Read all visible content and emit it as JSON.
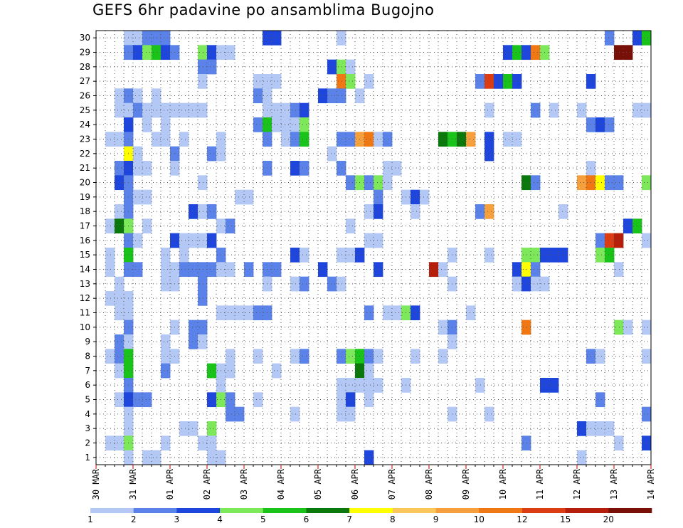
{
  "chart_data": {
    "type": "heatmap",
    "title": "GEFS 6hr padavine po ansamblima Bugojno",
    "xlabel": "",
    "ylabel": "",
    "y_ticks": [
      "1",
      "2",
      "3",
      "4",
      "5",
      "6",
      "7",
      "8",
      "9",
      "10",
      "11",
      "12",
      "13",
      "14",
      "15",
      "16",
      "17",
      "18",
      "19",
      "20",
      "21",
      "22",
      "23",
      "24",
      "25",
      "26",
      "27",
      "28",
      "29",
      "30"
    ],
    "x_ticks": [
      "30 MAR",
      "31 MAR",
      "01 APR",
      "02 APR",
      "03 APR",
      "04 APR",
      "05 APR",
      "06 APR",
      "07 APR",
      "08 APR",
      "09 APR",
      "10 APR",
      "11 APR",
      "12 APR",
      "13 APR",
      "14 APR"
    ],
    "time_steps_per_day": 4,
    "time_steps": 60,
    "members": 30,
    "grid": true,
    "legend_position": "bottom",
    "colorbar": {
      "labels": [
        "1",
        "2",
        "3",
        "4",
        "5",
        "6",
        "7",
        "8",
        "9",
        "10",
        "12",
        "15",
        "20"
      ],
      "colors": [
        "#b4c8f5",
        "#5a82e8",
        "#1e46dc",
        "#7de85a",
        "#19c319",
        "#0a780a",
        "#ffff00",
        "#fac85a",
        "#f5a03c",
        "#f07814",
        "#dc3c14",
        "#b41e0a",
        "#781008"
      ]
    },
    "cells": [
      [
        30,
        3,
        1
      ],
      [
        30,
        4,
        1
      ],
      [
        30,
        5,
        2
      ],
      [
        30,
        6,
        2
      ],
      [
        30,
        7,
        2
      ],
      [
        30,
        18,
        3
      ],
      [
        30,
        19,
        3
      ],
      [
        30,
        26,
        1
      ],
      [
        30,
        55,
        2
      ],
      [
        30,
        58,
        3
      ],
      [
        30,
        59,
        5
      ],
      [
        29,
        3,
        2
      ],
      [
        29,
        4,
        3
      ],
      [
        29,
        5,
        4
      ],
      [
        29,
        6,
        5
      ],
      [
        29,
        7,
        3
      ],
      [
        29,
        8,
        2
      ],
      [
        29,
        11,
        4
      ],
      [
        29,
        12,
        3
      ],
      [
        29,
        13,
        1
      ],
      [
        29,
        14,
        1
      ],
      [
        29,
        44,
        3
      ],
      [
        29,
        45,
        5
      ],
      [
        29,
        46,
        3
      ],
      [
        29,
        47,
        10
      ],
      [
        29,
        48,
        4
      ],
      [
        29,
        56,
        13
      ],
      [
        29,
        57,
        13
      ],
      [
        28,
        11,
        2
      ],
      [
        28,
        12,
        2
      ],
      [
        28,
        25,
        3
      ],
      [
        28,
        26,
        4
      ],
      [
        28,
        27,
        1
      ],
      [
        27,
        11,
        1
      ],
      [
        27,
        17,
        1
      ],
      [
        27,
        18,
        1
      ],
      [
        27,
        19,
        1
      ],
      [
        27,
        26,
        10
      ],
      [
        27,
        27,
        4
      ],
      [
        27,
        29,
        1
      ],
      [
        27,
        41,
        2
      ],
      [
        27,
        42,
        11
      ],
      [
        27,
        43,
        3
      ],
      [
        27,
        44,
        5
      ],
      [
        27,
        45,
        3
      ],
      [
        27,
        53,
        3
      ],
      [
        26,
        2,
        1
      ],
      [
        26,
        3,
        2
      ],
      [
        26,
        4,
        1
      ],
      [
        26,
        6,
        1
      ],
      [
        26,
        17,
        2
      ],
      [
        26,
        18,
        1
      ],
      [
        26,
        24,
        3
      ],
      [
        26,
        25,
        2
      ],
      [
        26,
        26,
        2
      ],
      [
        26,
        28,
        1
      ],
      [
        25,
        2,
        1
      ],
      [
        25,
        3,
        1
      ],
      [
        25,
        4,
        2
      ],
      [
        25,
        5,
        1
      ],
      [
        25,
        6,
        1
      ],
      [
        25,
        7,
        1
      ],
      [
        25,
        8,
        1
      ],
      [
        25,
        9,
        1
      ],
      [
        25,
        10,
        1
      ],
      [
        25,
        11,
        1
      ],
      [
        25,
        18,
        1
      ],
      [
        25,
        19,
        1
      ],
      [
        25,
        20,
        1
      ],
      [
        25,
        21,
        2
      ],
      [
        25,
        22,
        3
      ],
      [
        25,
        42,
        1
      ],
      [
        25,
        47,
        2
      ],
      [
        25,
        49,
        1
      ],
      [
        25,
        52,
        1
      ],
      [
        25,
        58,
        1
      ],
      [
        25,
        59,
        1
      ],
      [
        24,
        3,
        3
      ],
      [
        24,
        5,
        1
      ],
      [
        24,
        7,
        1
      ],
      [
        24,
        17,
        2
      ],
      [
        24,
        18,
        5
      ],
      [
        24,
        19,
        1
      ],
      [
        24,
        20,
        1
      ],
      [
        24,
        21,
        1
      ],
      [
        24,
        22,
        4
      ],
      [
        24,
        53,
        2
      ],
      [
        24,
        54,
        3
      ],
      [
        24,
        55,
        2
      ],
      [
        23,
        1,
        1
      ],
      [
        23,
        2,
        1
      ],
      [
        23,
        3,
        2
      ],
      [
        23,
        6,
        1
      ],
      [
        23,
        7,
        1
      ],
      [
        23,
        9,
        1
      ],
      [
        23,
        13,
        1
      ],
      [
        23,
        18,
        2
      ],
      [
        23,
        20,
        1
      ],
      [
        23,
        21,
        2
      ],
      [
        23,
        22,
        5
      ],
      [
        23,
        26,
        2
      ],
      [
        23,
        27,
        2
      ],
      [
        23,
        28,
        9
      ],
      [
        23,
        29,
        10
      ],
      [
        23,
        30,
        1
      ],
      [
        23,
        31,
        2
      ],
      [
        23,
        37,
        6
      ],
      [
        23,
        38,
        5
      ],
      [
        23,
        39,
        6
      ],
      [
        23,
        40,
        9
      ],
      [
        23,
        42,
        3
      ],
      [
        23,
        44,
        1
      ],
      [
        23,
        45,
        1
      ],
      [
        22,
        3,
        7
      ],
      [
        22,
        4,
        1
      ],
      [
        22,
        8,
        2
      ],
      [
        22,
        12,
        2
      ],
      [
        22,
        13,
        1
      ],
      [
        22,
        25,
        1
      ],
      [
        22,
        42,
        3
      ],
      [
        21,
        2,
        2
      ],
      [
        21,
        3,
        3
      ],
      [
        21,
        4,
        1
      ],
      [
        21,
        5,
        1
      ],
      [
        21,
        8,
        1
      ],
      [
        21,
        18,
        2
      ],
      [
        21,
        21,
        3
      ],
      [
        21,
        22,
        2
      ],
      [
        21,
        26,
        2
      ],
      [
        21,
        31,
        1
      ],
      [
        21,
        32,
        1
      ],
      [
        21,
        53,
        1
      ],
      [
        20,
        2,
        3
      ],
      [
        20,
        3,
        2
      ],
      [
        20,
        11,
        1
      ],
      [
        20,
        27,
        2
      ],
      [
        20,
        28,
        4
      ],
      [
        20,
        29,
        2
      ],
      [
        20,
        30,
        4
      ],
      [
        20,
        31,
        1
      ],
      [
        20,
        46,
        6
      ],
      [
        20,
        47,
        2
      ],
      [
        20,
        52,
        9
      ],
      [
        20,
        53,
        10
      ],
      [
        20,
        54,
        7
      ],
      [
        20,
        55,
        2
      ],
      [
        20,
        56,
        2
      ],
      [
        20,
        59,
        4
      ],
      [
        19,
        3,
        2
      ],
      [
        19,
        4,
        1
      ],
      [
        19,
        5,
        1
      ],
      [
        19,
        15,
        1
      ],
      [
        19,
        16,
        1
      ],
      [
        19,
        30,
        2
      ],
      [
        19,
        33,
        1
      ],
      [
        19,
        34,
        3
      ],
      [
        19,
        35,
        1
      ],
      [
        18,
        2,
        1
      ],
      [
        18,
        3,
        2
      ],
      [
        18,
        10,
        3
      ],
      [
        18,
        11,
        1
      ],
      [
        18,
        12,
        2
      ],
      [
        18,
        29,
        1
      ],
      [
        18,
        30,
        3
      ],
      [
        18,
        34,
        1
      ],
      [
        18,
        41,
        2
      ],
      [
        18,
        42,
        9
      ],
      [
        18,
        50,
        1
      ],
      [
        17,
        1,
        1
      ],
      [
        17,
        2,
        6
      ],
      [
        17,
        3,
        4
      ],
      [
        17,
        5,
        1
      ],
      [
        17,
        13,
        1
      ],
      [
        17,
        14,
        2
      ],
      [
        17,
        27,
        1
      ],
      [
        17,
        57,
        3
      ],
      [
        17,
        58,
        5
      ],
      [
        16,
        3,
        2
      ],
      [
        16,
        4,
        1
      ],
      [
        16,
        8,
        3
      ],
      [
        16,
        9,
        1
      ],
      [
        16,
        10,
        1
      ],
      [
        16,
        11,
        1
      ],
      [
        16,
        12,
        3
      ],
      [
        16,
        29,
        1
      ],
      [
        16,
        30,
        1
      ],
      [
        16,
        54,
        2
      ],
      [
        16,
        55,
        11
      ],
      [
        16,
        56,
        12
      ],
      [
        16,
        59,
        1
      ],
      [
        15,
        1,
        1
      ],
      [
        15,
        3,
        5
      ],
      [
        15,
        7,
        1
      ],
      [
        15,
        9,
        1
      ],
      [
        15,
        13,
        2
      ],
      [
        15,
        21,
        3
      ],
      [
        15,
        22,
        1
      ],
      [
        15,
        26,
        1
      ],
      [
        15,
        27,
        1
      ],
      [
        15,
        28,
        3
      ],
      [
        15,
        38,
        1
      ],
      [
        15,
        42,
        1
      ],
      [
        15,
        46,
        4
      ],
      [
        15,
        47,
        4
      ],
      [
        15,
        48,
        3
      ],
      [
        15,
        49,
        3
      ],
      [
        15,
        50,
        3
      ],
      [
        15,
        54,
        4
      ],
      [
        15,
        55,
        5
      ],
      [
        14,
        1,
        1
      ],
      [
        14,
        3,
        2
      ],
      [
        14,
        4,
        2
      ],
      [
        14,
        7,
        1
      ],
      [
        14,
        8,
        1
      ],
      [
        14,
        9,
        2
      ],
      [
        14,
        10,
        2
      ],
      [
        14,
        11,
        2
      ],
      [
        14,
        12,
        2
      ],
      [
        14,
        13,
        1
      ],
      [
        14,
        14,
        1
      ],
      [
        14,
        16,
        2
      ],
      [
        14,
        18,
        2
      ],
      [
        14,
        19,
        2
      ],
      [
        14,
        24,
        3
      ],
      [
        14,
        30,
        3
      ],
      [
        14,
        36,
        12
      ],
      [
        14,
        37,
        1
      ],
      [
        14,
        45,
        3
      ],
      [
        14,
        46,
        7
      ],
      [
        14,
        47,
        2
      ],
      [
        14,
        56,
        1
      ],
      [
        13,
        2,
        1
      ],
      [
        13,
        7,
        1
      ],
      [
        13,
        8,
        1
      ],
      [
        13,
        11,
        2
      ],
      [
        13,
        18,
        1
      ],
      [
        13,
        21,
        1
      ],
      [
        13,
        22,
        2
      ],
      [
        13,
        25,
        2
      ],
      [
        13,
        26,
        1
      ],
      [
        13,
        38,
        1
      ],
      [
        13,
        45,
        1
      ],
      [
        13,
        46,
        3
      ],
      [
        13,
        47,
        1
      ],
      [
        13,
        48,
        1
      ],
      [
        12,
        1,
        1
      ],
      [
        12,
        2,
        1
      ],
      [
        12,
        3,
        1
      ],
      [
        12,
        11,
        2
      ],
      [
        11,
        2,
        1
      ],
      [
        11,
        3,
        1
      ],
      [
        11,
        13,
        1
      ],
      [
        11,
        14,
        1
      ],
      [
        11,
        15,
        1
      ],
      [
        11,
        16,
        1
      ],
      [
        11,
        17,
        2
      ],
      [
        11,
        18,
        2
      ],
      [
        11,
        29,
        2
      ],
      [
        11,
        31,
        1
      ],
      [
        11,
        32,
        1
      ],
      [
        11,
        33,
        4
      ],
      [
        11,
        34,
        3
      ],
      [
        11,
        40,
        1
      ],
      [
        10,
        3,
        2
      ],
      [
        10,
        8,
        1
      ],
      [
        10,
        10,
        2
      ],
      [
        10,
        11,
        2
      ],
      [
        10,
        37,
        1
      ],
      [
        10,
        38,
        2
      ],
      [
        10,
        46,
        10
      ],
      [
        10,
        56,
        4
      ],
      [
        10,
        57,
        1
      ],
      [
        10,
        59,
        1
      ],
      [
        9,
        2,
        2
      ],
      [
        9,
        3,
        1
      ],
      [
        9,
        7,
        1
      ],
      [
        9,
        10,
        2
      ],
      [
        9,
        11,
        1
      ],
      [
        9,
        38,
        1
      ],
      [
        8,
        1,
        1
      ],
      [
        8,
        2,
        2
      ],
      [
        8,
        3,
        5
      ],
      [
        8,
        7,
        1
      ],
      [
        8,
        8,
        1
      ],
      [
        8,
        14,
        1
      ],
      [
        8,
        17,
        1
      ],
      [
        8,
        21,
        1
      ],
      [
        8,
        22,
        2
      ],
      [
        8,
        26,
        2
      ],
      [
        8,
        27,
        4
      ],
      [
        8,
        28,
        5
      ],
      [
        8,
        29,
        2
      ],
      [
        8,
        30,
        1
      ],
      [
        8,
        34,
        1
      ],
      [
        8,
        37,
        1
      ],
      [
        8,
        53,
        2
      ],
      [
        8,
        54,
        1
      ],
      [
        8,
        59,
        1
      ],
      [
        7,
        2,
        1
      ],
      [
        7,
        3,
        5
      ],
      [
        7,
        7,
        2
      ],
      [
        7,
        12,
        5
      ],
      [
        7,
        13,
        1
      ],
      [
        7,
        14,
        1
      ],
      [
        7,
        19,
        1
      ],
      [
        7,
        28,
        6
      ],
      [
        7,
        29,
        1
      ],
      [
        6,
        3,
        2
      ],
      [
        6,
        13,
        1
      ],
      [
        6,
        26,
        1
      ],
      [
        6,
        27,
        1
      ],
      [
        6,
        28,
        1
      ],
      [
        6,
        29,
        1
      ],
      [
        6,
        30,
        1
      ],
      [
        6,
        33,
        1
      ],
      [
        6,
        41,
        1
      ],
      [
        6,
        48,
        3
      ],
      [
        6,
        49,
        3
      ],
      [
        5,
        2,
        1
      ],
      [
        5,
        3,
        3
      ],
      [
        5,
        4,
        2
      ],
      [
        5,
        5,
        2
      ],
      [
        5,
        12,
        3
      ],
      [
        5,
        13,
        4
      ],
      [
        5,
        14,
        2
      ],
      [
        5,
        17,
        1
      ],
      [
        5,
        26,
        1
      ],
      [
        5,
        27,
        3
      ],
      [
        5,
        29,
        1
      ],
      [
        5,
        54,
        2
      ],
      [
        4,
        3,
        1
      ],
      [
        4,
        14,
        2
      ],
      [
        4,
        15,
        2
      ],
      [
        4,
        21,
        1
      ],
      [
        4,
        26,
        1
      ],
      [
        4,
        27,
        1
      ],
      [
        4,
        38,
        1
      ],
      [
        4,
        42,
        1
      ],
      [
        4,
        59,
        2
      ],
      [
        3,
        3,
        1
      ],
      [
        3,
        9,
        1
      ],
      [
        3,
        10,
        1
      ],
      [
        3,
        12,
        4
      ],
      [
        3,
        52,
        3
      ],
      [
        3,
        53,
        1
      ],
      [
        3,
        54,
        1
      ],
      [
        3,
        55,
        1
      ],
      [
        2,
        1,
        1
      ],
      [
        2,
        2,
        1
      ],
      [
        2,
        3,
        4
      ],
      [
        2,
        7,
        1
      ],
      [
        2,
        11,
        1
      ],
      [
        2,
        12,
        1
      ],
      [
        2,
        46,
        2
      ],
      [
        2,
        56,
        1
      ],
      [
        2,
        59,
        3
      ],
      [
        1,
        3,
        1
      ],
      [
        1,
        5,
        1
      ],
      [
        1,
        6,
        1
      ],
      [
        1,
        12,
        1
      ],
      [
        1,
        13,
        1
      ],
      [
        1,
        29,
        3
      ],
      [
        1,
        52,
        1
      ]
    ]
  }
}
